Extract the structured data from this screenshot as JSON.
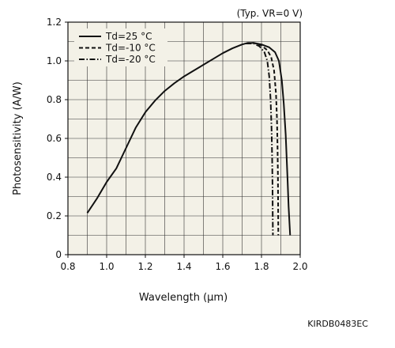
{
  "chart_data": {
    "type": "line",
    "title": "",
    "condition_note": "(Typ. VR=0 V)",
    "xlabel": "Wavelength (μm)",
    "ylabel": "Photosensitivity (A/W)",
    "xlim": [
      0.8,
      2.0
    ],
    "ylim": [
      0,
      1.2
    ],
    "x_ticks": [
      "0.8",
      "1.0",
      "1.2",
      "1.4",
      "1.6",
      "1.8",
      "2.0"
    ],
    "y_ticks": [
      "0",
      "0.2",
      "0.4",
      "0.6",
      "0.8",
      "1.0",
      "1.2"
    ],
    "x_tick_values": [
      0.8,
      1.0,
      1.2,
      1.4,
      1.6,
      1.8,
      2.0
    ],
    "y_tick_values": [
      0,
      0.2,
      0.4,
      0.6,
      0.8,
      1.0,
      1.2
    ],
    "x_minor_step": 0.1,
    "y_minor_step": 0.1,
    "grid": true,
    "legend_position": "top-left",
    "line_color": "#111111",
    "plot_background": "#f3f1e7",
    "series": [
      {
        "name": "Td=25 °C",
        "dash": "solid",
        "points": [
          [
            0.9,
            0.215
          ],
          [
            0.95,
            0.29
          ],
          [
            1.0,
            0.375
          ],
          [
            1.05,
            0.445
          ],
          [
            1.1,
            0.55
          ],
          [
            1.15,
            0.655
          ],
          [
            1.2,
            0.735
          ],
          [
            1.25,
            0.795
          ],
          [
            1.3,
            0.845
          ],
          [
            1.35,
            0.885
          ],
          [
            1.4,
            0.92
          ],
          [
            1.45,
            0.95
          ],
          [
            1.5,
            0.98
          ],
          [
            1.55,
            1.01
          ],
          [
            1.6,
            1.04
          ],
          [
            1.65,
            1.065
          ],
          [
            1.7,
            1.085
          ],
          [
            1.73,
            1.093
          ],
          [
            1.76,
            1.093
          ],
          [
            1.8,
            1.085
          ],
          [
            1.84,
            1.07
          ],
          [
            1.87,
            1.045
          ],
          [
            1.89,
            1.0
          ],
          [
            1.905,
            0.9
          ],
          [
            1.915,
            0.78
          ],
          [
            1.925,
            0.62
          ],
          [
            1.93,
            0.5
          ],
          [
            1.935,
            0.38
          ],
          [
            1.94,
            0.25
          ],
          [
            1.948,
            0.1
          ]
        ]
      },
      {
        "name": "Td=-10 °C",
        "dash": "dashed",
        "points": [
          [
            1.72,
            1.09
          ],
          [
            1.76,
            1.093
          ],
          [
            1.8,
            1.08
          ],
          [
            1.83,
            1.055
          ],
          [
            1.85,
            1.02
          ],
          [
            1.865,
            0.95
          ],
          [
            1.875,
            0.83
          ],
          [
            1.88,
            0.7
          ],
          [
            1.883,
            0.55
          ],
          [
            1.885,
            0.4
          ],
          [
            1.886,
            0.25
          ],
          [
            1.887,
            0.1
          ]
        ]
      },
      {
        "name": "Td=-20 °C",
        "dash": "dash-dot",
        "points": [
          [
            1.72,
            1.09
          ],
          [
            1.76,
            1.09
          ],
          [
            1.79,
            1.075
          ],
          [
            1.815,
            1.045
          ],
          [
            1.83,
            1.0
          ],
          [
            1.84,
            0.92
          ],
          [
            1.847,
            0.8
          ],
          [
            1.852,
            0.65
          ],
          [
            1.855,
            0.5
          ],
          [
            1.857,
            0.35
          ],
          [
            1.858,
            0.2
          ],
          [
            1.859,
            0.1
          ]
        ]
      }
    ]
  },
  "footer": {
    "code": "KIRDB0483EC"
  }
}
